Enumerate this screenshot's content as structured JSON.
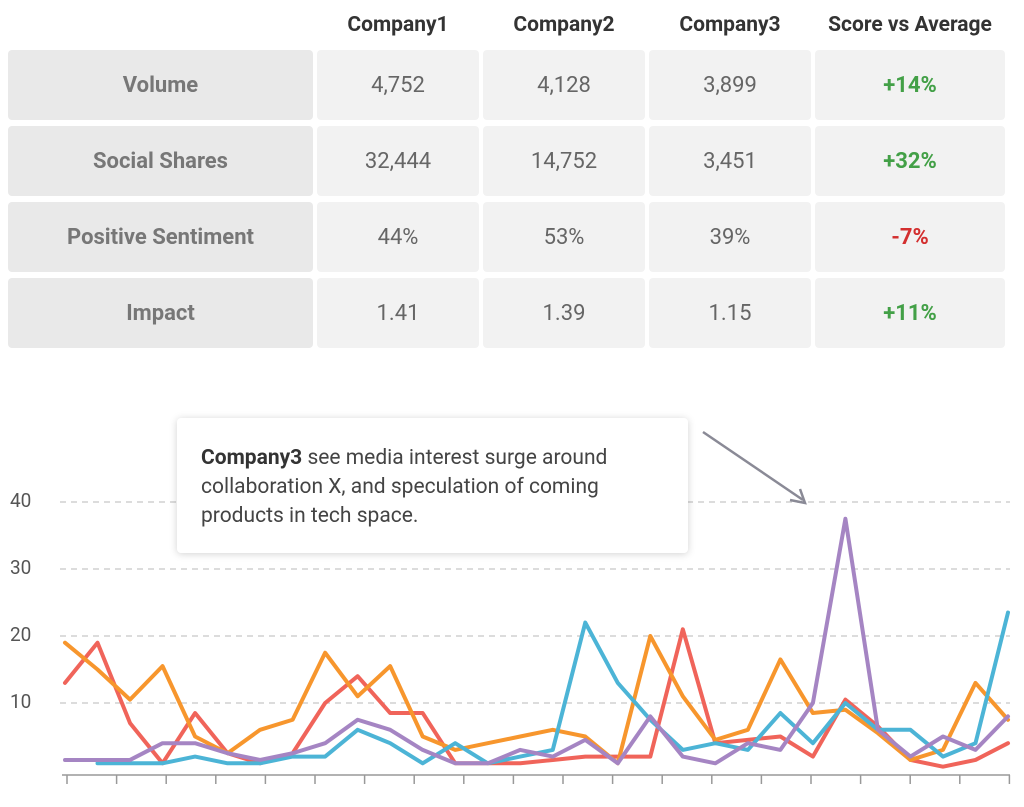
{
  "table": {
    "columns": [
      "Company1",
      "Company2",
      "Company3",
      "Score vs Average"
    ],
    "rows": [
      {
        "label": "Volume",
        "values": [
          "4,752",
          "4,128",
          "3,899"
        ],
        "score": "+14%",
        "score_color": "#43a047"
      },
      {
        "label": "Social Shares",
        "values": [
          "32,444",
          "14,752",
          "3,451"
        ],
        "score": "+32%",
        "score_color": "#43a047"
      },
      {
        "label": "Positive Sentiment",
        "values": [
          "44%",
          "53%",
          "39%"
        ],
        "score": "-7%",
        "score_color": "#d32f2f"
      },
      {
        "label": "Impact",
        "values": [
          "1.41",
          "1.39",
          "1.15"
        ],
        "score": "+11%",
        "score_color": "#43a047"
      }
    ]
  },
  "chart_data": {
    "type": "line",
    "annotation": {
      "emphasis": "Company3",
      "text": " see media interest surge around collaboration X, and speculation of coming products in tech space."
    },
    "ylim": [
      0,
      45
    ],
    "yticks": [
      10,
      20,
      30,
      40
    ],
    "grid": true,
    "series": [
      {
        "color": "#f0645a",
        "values": [
          13,
          19,
          7,
          1,
          8.5,
          2.5,
          1,
          2.5,
          10,
          14,
          8.5,
          8.5,
          1,
          1,
          1,
          1.5,
          2,
          2,
          2,
          21,
          4,
          4.5,
          5,
          2,
          10.5,
          6.5,
          1.5,
          0.5,
          1.5,
          4
        ]
      },
      {
        "color": "#f7962d",
        "values": [
          19,
          15,
          10.5,
          15.5,
          5,
          2.5,
          6,
          7.5,
          17.5,
          11,
          15.5,
          5,
          3,
          4,
          5,
          6,
          5,
          1,
          20,
          11,
          4.5,
          6,
          16.5,
          8.5,
          9,
          5.5,
          1.5,
          3,
          13,
          7.5
        ]
      },
      {
        "color": "#4cb4d6",
        "values": [
          null,
          1,
          1,
          1,
          2,
          1,
          1,
          2,
          2,
          6,
          4,
          1,
          4,
          1,
          2,
          3,
          22,
          13,
          7.5,
          3,
          4,
          3,
          8.5,
          4,
          10,
          6,
          6,
          2,
          4,
          23.5
        ]
      },
      {
        "color": "#a585c3",
        "values": [
          1.5,
          1.5,
          1.5,
          4,
          4,
          2.5,
          1.5,
          2.5,
          4,
          7.5,
          6,
          3,
          1,
          1,
          3,
          2,
          4.5,
          1,
          8,
          2,
          1,
          4,
          3,
          10,
          37.5,
          6,
          2,
          5,
          3,
          8
        ]
      }
    ]
  }
}
